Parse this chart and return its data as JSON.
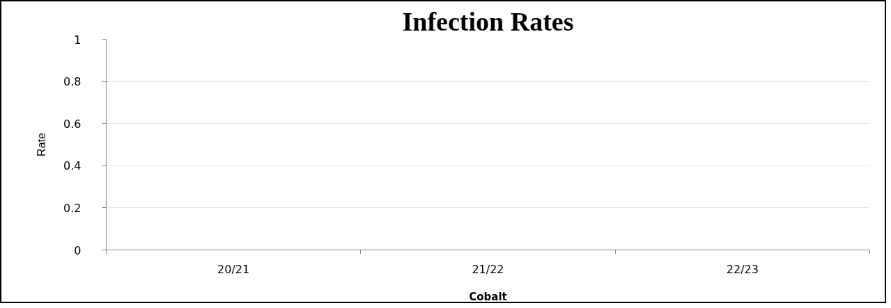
{
  "chart_data": {
    "type": "bar",
    "title": "Infection Rates",
    "xlabel": "Cobalt",
    "ylabel": "Rate",
    "categories": [
      "20/21",
      "21/22",
      "22/23"
    ],
    "values": [
      null,
      null,
      null
    ],
    "ylim": [
      0,
      1
    ],
    "yticks": [
      0,
      0.2,
      0.4,
      0.6,
      0.8,
      1
    ],
    "grid": "y"
  }
}
